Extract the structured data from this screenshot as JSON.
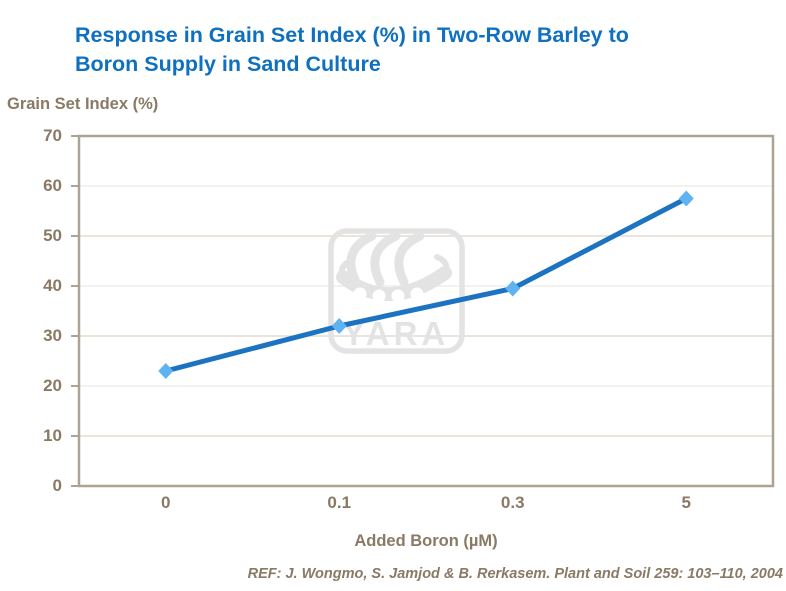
{
  "title": {
    "line1": "Response in Grain Set Index (%) in Two-Row Barley to",
    "line2": "Boron Supply in Sand Culture",
    "color": "#0F70BF"
  },
  "watermark": {
    "text": "YARA",
    "color": "#E3E3E3"
  },
  "footer": {
    "reference": "REF: J. Wongmo, S. Jamjod & B. Rerkasem. Plant and Soil 259: 103–110, 2004"
  },
  "colors": {
    "title_blue": "#0F70BF",
    "axis_text_brown": "#8A7964",
    "axis_line": "#AEA294",
    "grid_tan": "#E5DCCD",
    "grid_gray": "#F0EEE9",
    "line_blue": "#1B73C2",
    "marker_blue": "#5FB3F1",
    "watermark_gray": "#E3E3E3",
    "background": "#FFFFFF"
  },
  "chart_data": {
    "type": "line",
    "title": "Response in Grain Set Index (%) in Two-Row Barley to Boron Supply in Sand Culture",
    "categories": [
      "0",
      "0.1",
      "0.3",
      "5"
    ],
    "series": [
      {
        "name": "Grain Set Index",
        "values": [
          23,
          32,
          39.5,
          57.5
        ]
      }
    ],
    "xlabel": "Added Boron (µM)",
    "ylabel": "Grain Set Index (%)",
    "ylim": [
      0,
      70
    ],
    "ytick_step": 10,
    "yticks": [
      0,
      10,
      20,
      30,
      40,
      50,
      60,
      70
    ],
    "grid": "horizontal",
    "legend": "none",
    "marker": "diamond",
    "line_color": "#1B73C2",
    "marker_color": "#5FB3F1"
  }
}
